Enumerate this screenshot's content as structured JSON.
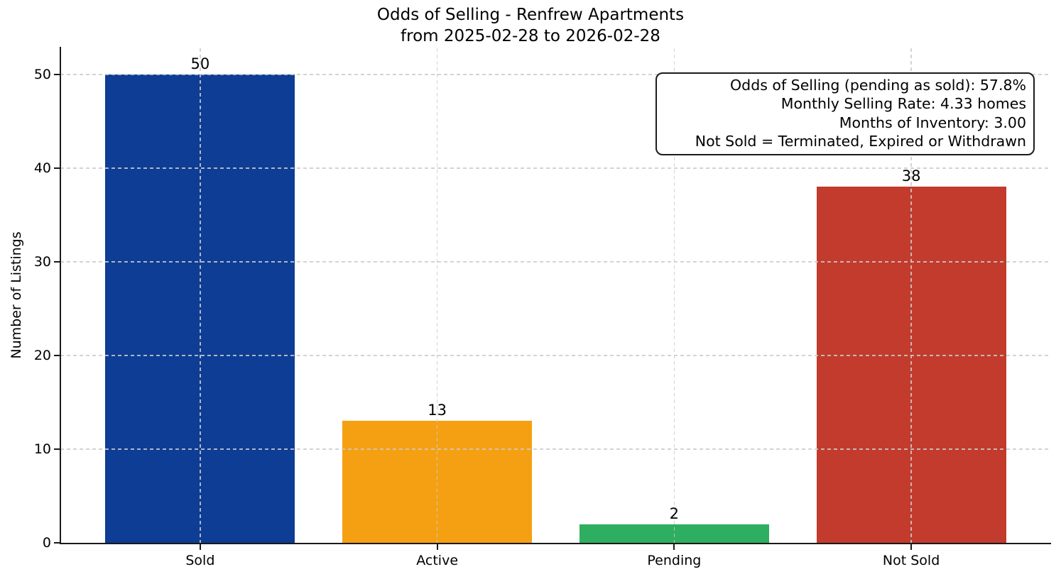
{
  "title": {
    "line1": "Odds of Selling - Renfrew Apartments",
    "line2": "from 2025-02-28 to 2026-02-28"
  },
  "chart_data": {
    "type": "bar",
    "title": "Odds of Selling - Renfrew Apartments\nfrom 2025-02-28 to 2026-02-28",
    "categories": [
      "Sold",
      "Active",
      "Pending",
      "Not Sold"
    ],
    "values": [
      50,
      13,
      2,
      38
    ],
    "value_labels": [
      "50",
      "13",
      "2",
      "38"
    ],
    "bar_colors": [
      "#0d3d94",
      "#f5a012",
      "#2eae60",
      "#c23b2c"
    ],
    "xlabel": "",
    "ylabel": "Number of Listings",
    "yticks": [
      0,
      10,
      20,
      30,
      40,
      50
    ],
    "ytick_labels": [
      "0",
      "10",
      "20",
      "30",
      "40",
      "50"
    ],
    "ylim": [
      0,
      52.8
    ],
    "grid": {
      "style": "dashed",
      "axes": "both",
      "color": "#cbcbcb",
      "drawn_over_bars": true
    },
    "legend": null,
    "annotation_box": {
      "lines": [
        "Odds of Selling (pending as sold): 57.8%",
        "Monthly Selling Rate: 4.33 homes",
        "Months of Inventory: 3.00",
        "Not Sold = Terminated, Expired or Withdrawn"
      ],
      "position": "top-right",
      "border_color": "#1c1c1c"
    }
  }
}
